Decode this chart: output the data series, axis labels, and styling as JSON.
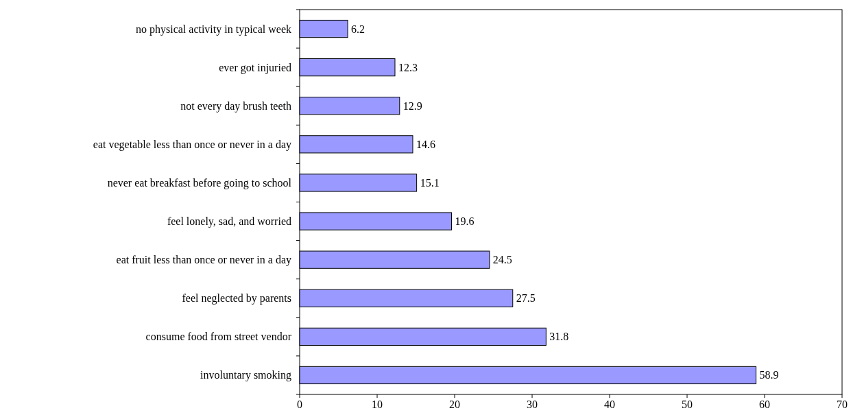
{
  "chart_data": {
    "type": "bar",
    "orientation": "horizontal",
    "categories": [
      "no physical activity in typical week",
      "ever got injuried",
      "not every day brush teeth",
      "eat vegetable less than once or never in a day",
      "never eat breakfast before going to school",
      "feel lonely, sad, and worried",
      "eat fruit less than once or never in a day",
      "feel neglected by parents",
      "consume food from street vendor",
      "involuntary smoking"
    ],
    "values": [
      6.2,
      12.3,
      12.9,
      14.6,
      15.1,
      19.6,
      24.5,
      27.5,
      31.8,
      58.9
    ],
    "color": "#9999ff",
    "xlim": [
      0,
      70
    ],
    "xticks": [
      0,
      10,
      20,
      30,
      40,
      50,
      60,
      70
    ],
    "data_labels": true
  }
}
